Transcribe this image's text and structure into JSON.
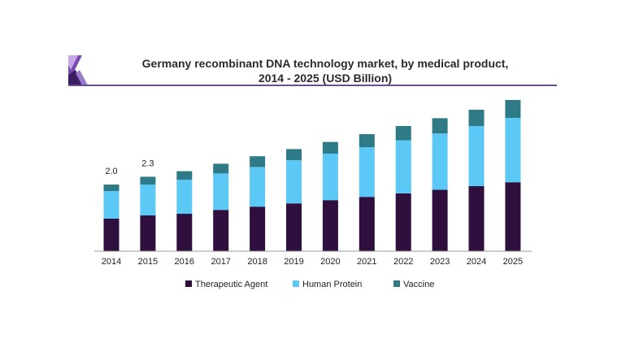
{
  "chart_data": {
    "type": "bar",
    "stacked": true,
    "title": "Germany recombinant DNA technology market, by medical product, 2014 - 2025 (USD Billion)",
    "title_lines": [
      "Germany recombinant DNA technology market, by medical product,",
      "2014 - 2025 (USD Billion)"
    ],
    "categories": [
      "2014",
      "2015",
      "2016",
      "2017",
      "2018",
      "2019",
      "2020",
      "2021",
      "2022",
      "2023",
      "2024",
      "2025"
    ],
    "series": [
      {
        "name": "Therapeutic Agent",
        "color": "#2e0f3d",
        "values": [
          1.0,
          1.1,
          1.15,
          1.27,
          1.37,
          1.47,
          1.57,
          1.67,
          1.78,
          1.89,
          2.0,
          2.12
        ]
      },
      {
        "name": "Human Protein",
        "color": "#5bc8f5",
        "values": [
          0.85,
          0.95,
          1.05,
          1.12,
          1.22,
          1.33,
          1.43,
          1.53,
          1.63,
          1.73,
          1.85,
          1.98
        ]
      },
      {
        "name": "Vaccine",
        "color": "#2e7a86",
        "values": [
          0.2,
          0.24,
          0.26,
          0.3,
          0.33,
          0.34,
          0.36,
          0.4,
          0.44,
          0.47,
          0.5,
          0.55
        ]
      }
    ],
    "data_labels": [
      {
        "category": "2014",
        "text": "2.0"
      },
      {
        "category": "2015",
        "text": "2.3"
      }
    ],
    "xlabel": "",
    "ylabel": "",
    "ylim": [
      0,
      5.0
    ],
    "grid": false,
    "legend_position": "bottom"
  }
}
